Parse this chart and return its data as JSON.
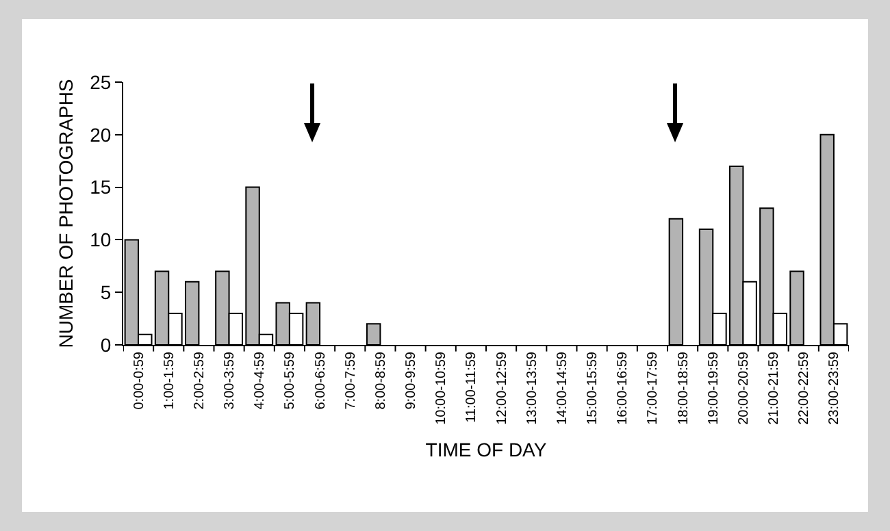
{
  "chart_data": {
    "type": "bar",
    "xlabel": "TIME OF DAY",
    "ylabel": "NUMBER OF PHOTOGRAPHS",
    "categories": [
      "0:00-0:59",
      "1:00-1:59",
      "2:00-2:59",
      "3:00-3:59",
      "4:00-4:59",
      "5:00-5:59",
      "6:00-6:59",
      "7:00-7:59",
      "8:00-8:59",
      "9:00-9:59",
      "10:00-10:59",
      "11:00-11:59",
      "12:00-12:59",
      "13:00-13:59",
      "14:00-14:59",
      "15:00-15:59",
      "16:00-16:59",
      "17:00-17:59",
      "18:00-18:59",
      "19:00-19:59",
      "20:00-20:59",
      "21:00-21:59",
      "22:00-22:59",
      "23:00-23:59"
    ],
    "series": [
      {
        "color": "#b3b3b3",
        "values": [
          10,
          7,
          6,
          7,
          15,
          4,
          4,
          0,
          2,
          0,
          0,
          0,
          0,
          0,
          0,
          0,
          0,
          0,
          12,
          11,
          17,
          13,
          7,
          20
        ]
      },
      {
        "color": "#ffffff",
        "values": [
          1,
          3,
          0,
          3,
          1,
          3,
          0,
          0,
          0,
          0,
          0,
          0,
          0,
          0,
          0,
          0,
          0,
          0,
          0,
          3,
          6,
          3,
          0,
          2
        ]
      }
    ],
    "ylim": [
      0,
      25
    ],
    "yticks": [
      0,
      5,
      10,
      15,
      20,
      25
    ],
    "grid": false
  }
}
